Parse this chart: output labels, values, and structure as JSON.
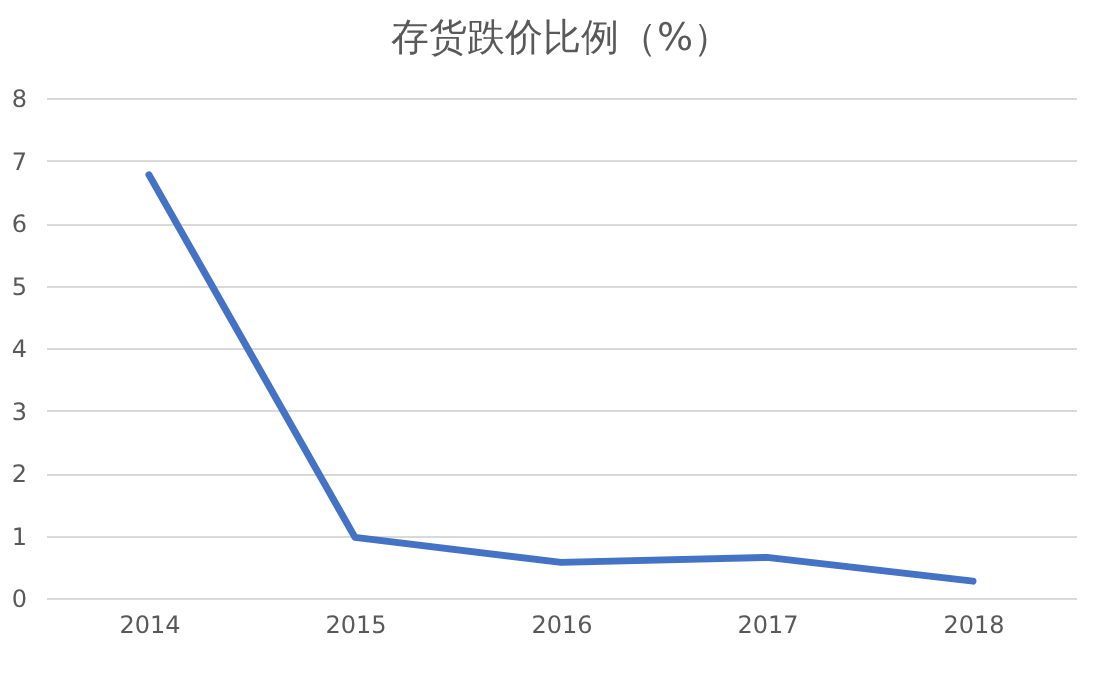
{
  "chart_data": {
    "type": "line",
    "title": "存货跌价比例（%）",
    "categories": [
      "2014",
      "2015",
      "2016",
      "2017",
      "2018"
    ],
    "series": [
      {
        "color": "#4472c4",
        "values": [
          6.77,
          0.97,
          0.57,
          0.65,
          0.27
        ]
      }
    ],
    "ylim": [
      0,
      8
    ],
    "yticks": [
      0,
      1,
      2,
      3,
      4,
      5,
      6,
      7,
      8
    ],
    "grid": "y",
    "marker": "none",
    "line_style": "solid"
  }
}
